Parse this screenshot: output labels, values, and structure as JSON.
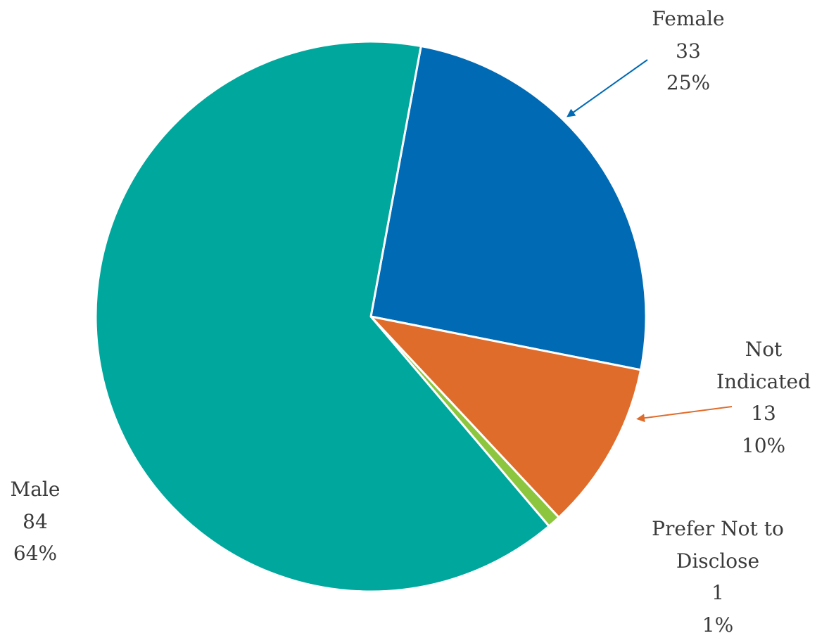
{
  "chart_data": {
    "type": "pie",
    "categories": [
      "Female",
      "Not Indicated",
      "Prefer Not to Disclose",
      "Male"
    ],
    "values": [
      33,
      13,
      1,
      84
    ],
    "percent_labels": [
      "25%",
      "10%",
      "1%",
      "64%"
    ],
    "colors": [
      "#006ab4",
      "#e06c2b",
      "#8cc63f",
      "#00a79d"
    ]
  }
}
